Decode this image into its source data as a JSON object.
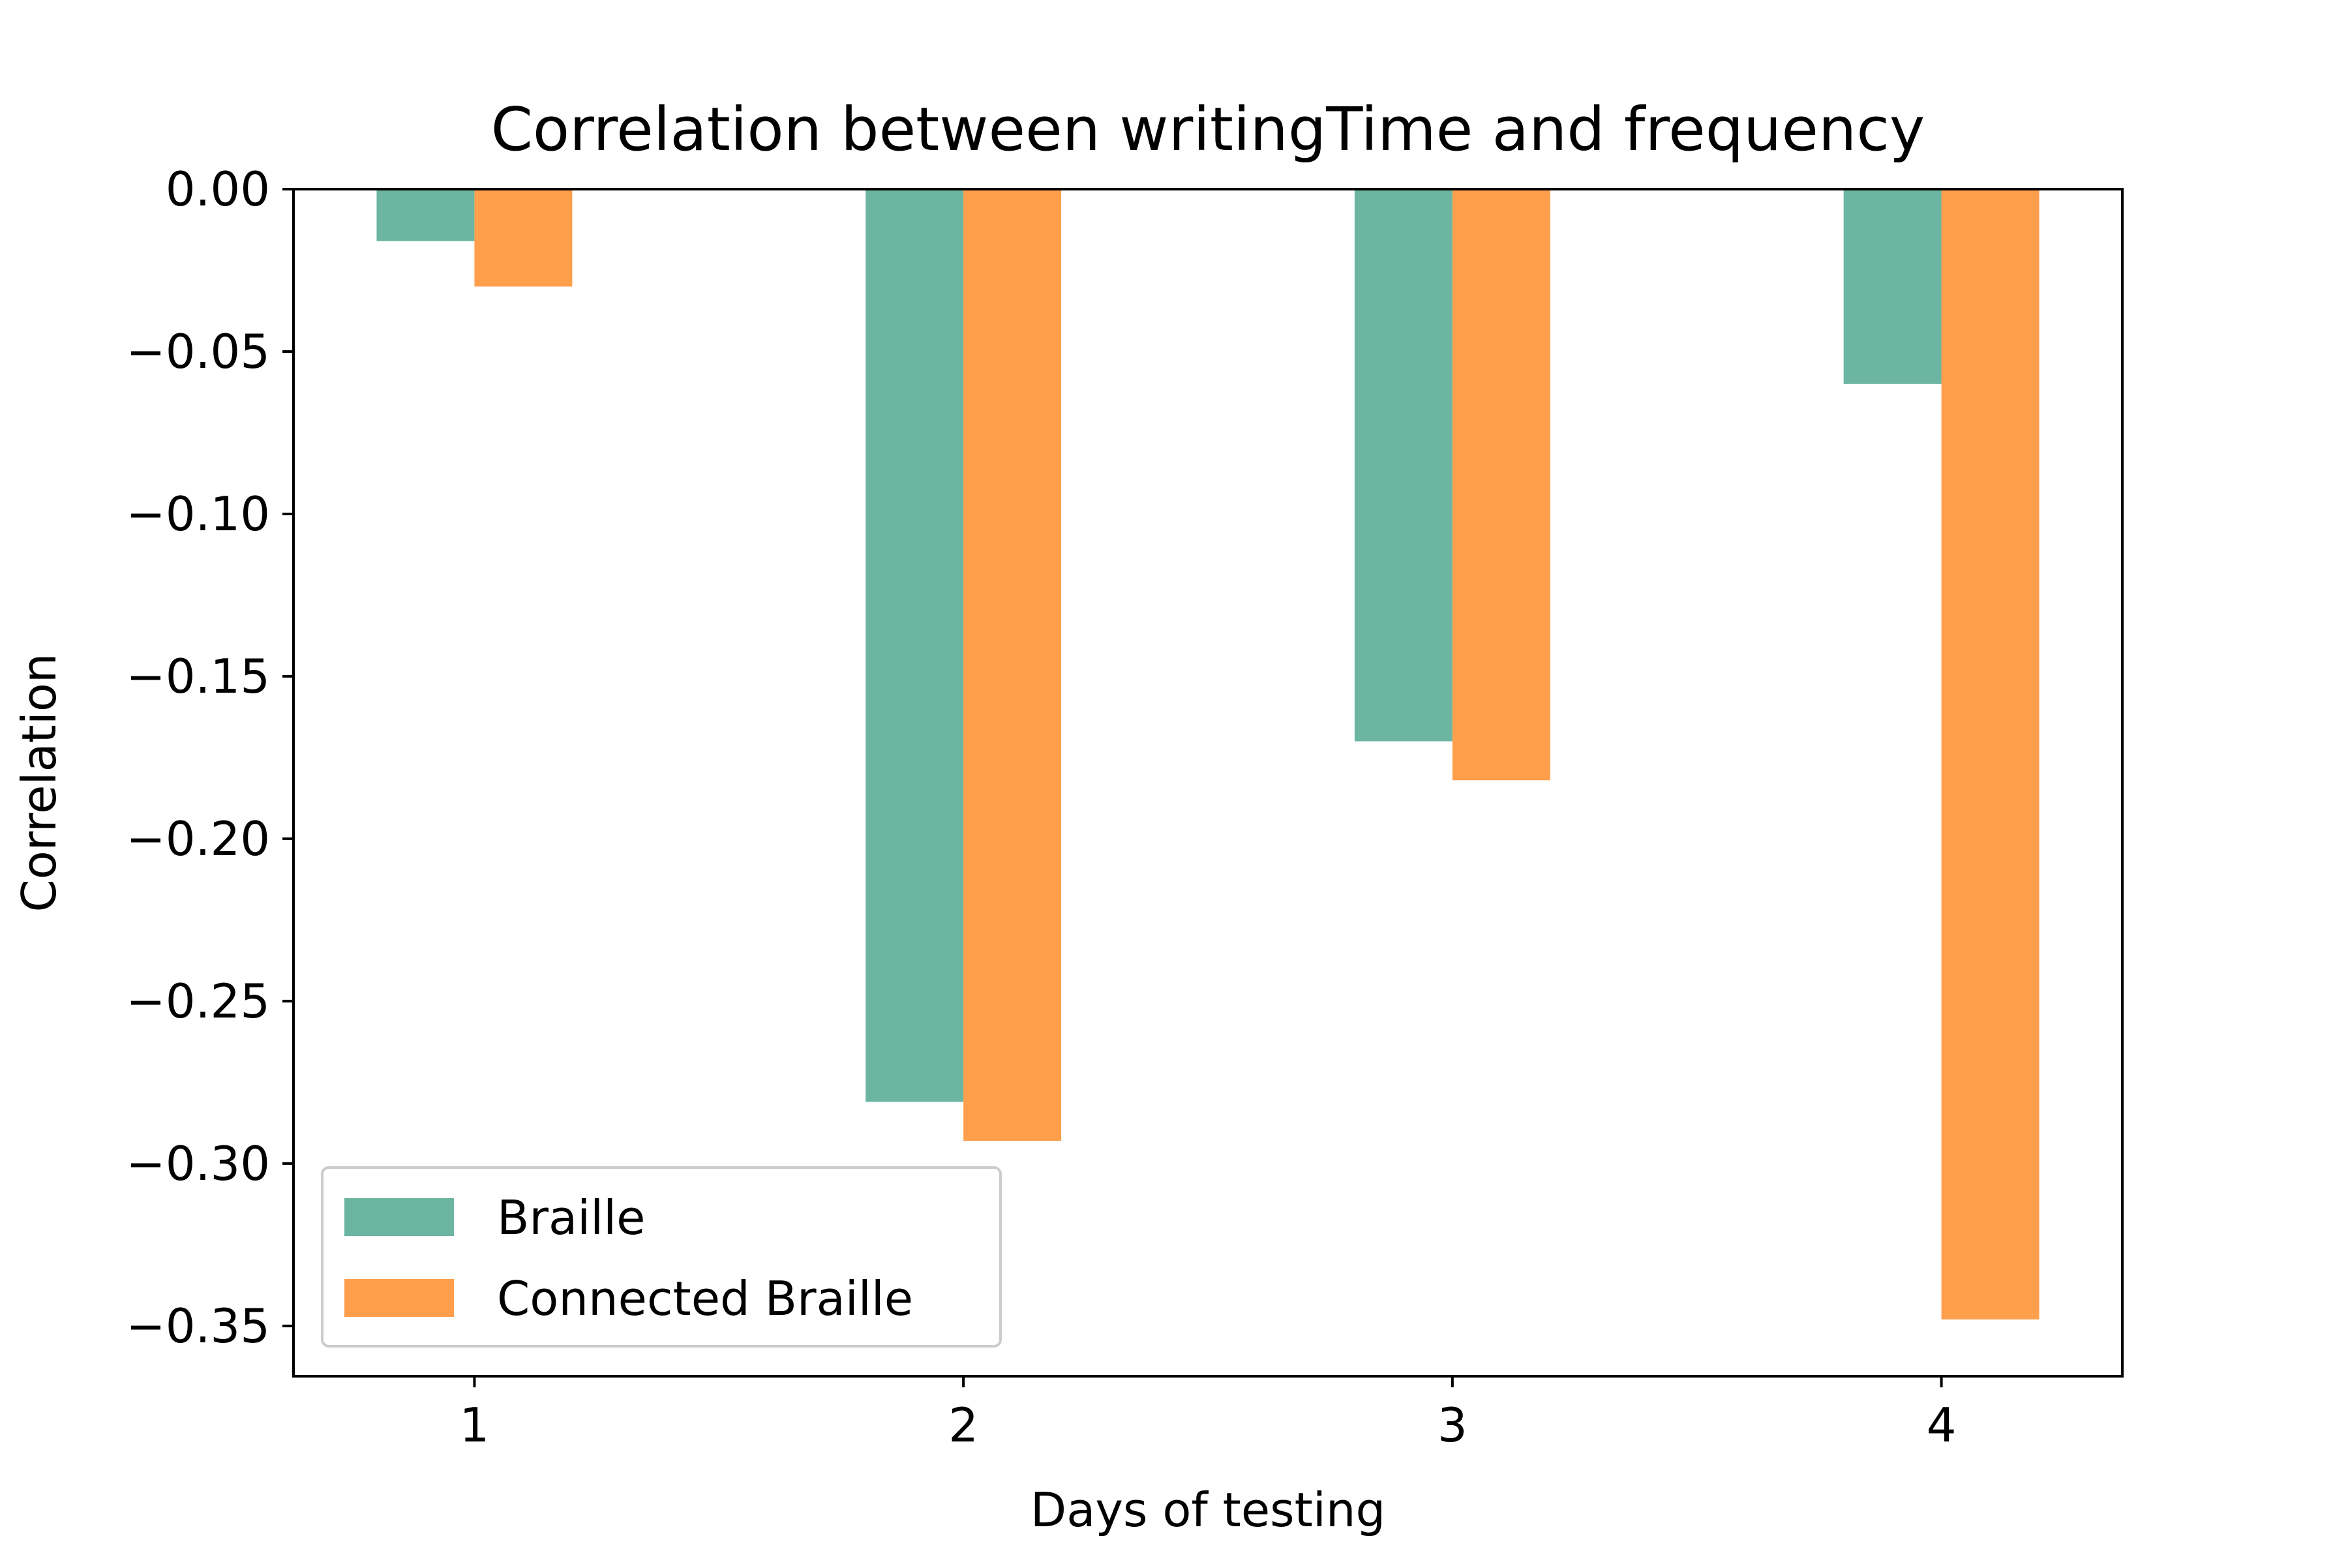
{
  "chart_data": {
    "type": "bar",
    "title": "Correlation between writingTime and frequency",
    "xlabel": "Days of testing",
    "ylabel": "Correlation",
    "categories": [
      "1",
      "2",
      "3",
      "4"
    ],
    "series": [
      {
        "name": "Braille",
        "values": [
          -0.016,
          -0.281,
          -0.17,
          -0.06
        ],
        "color": "#6bb5a1"
      },
      {
        "name": "Connected Braille",
        "values": [
          -0.03,
          -0.293,
          -0.182,
          -0.348
        ],
        "color": "#ff9f4c"
      }
    ],
    "yticks": [
      "0.00",
      "−0.05",
      "−0.10",
      "−0.15",
      "−0.20",
      "−0.25",
      "−0.30",
      "−0.35"
    ],
    "ylim": [
      -0.3655,
      0.0
    ],
    "grid": false,
    "legend": {
      "position": "lower-left"
    }
  }
}
